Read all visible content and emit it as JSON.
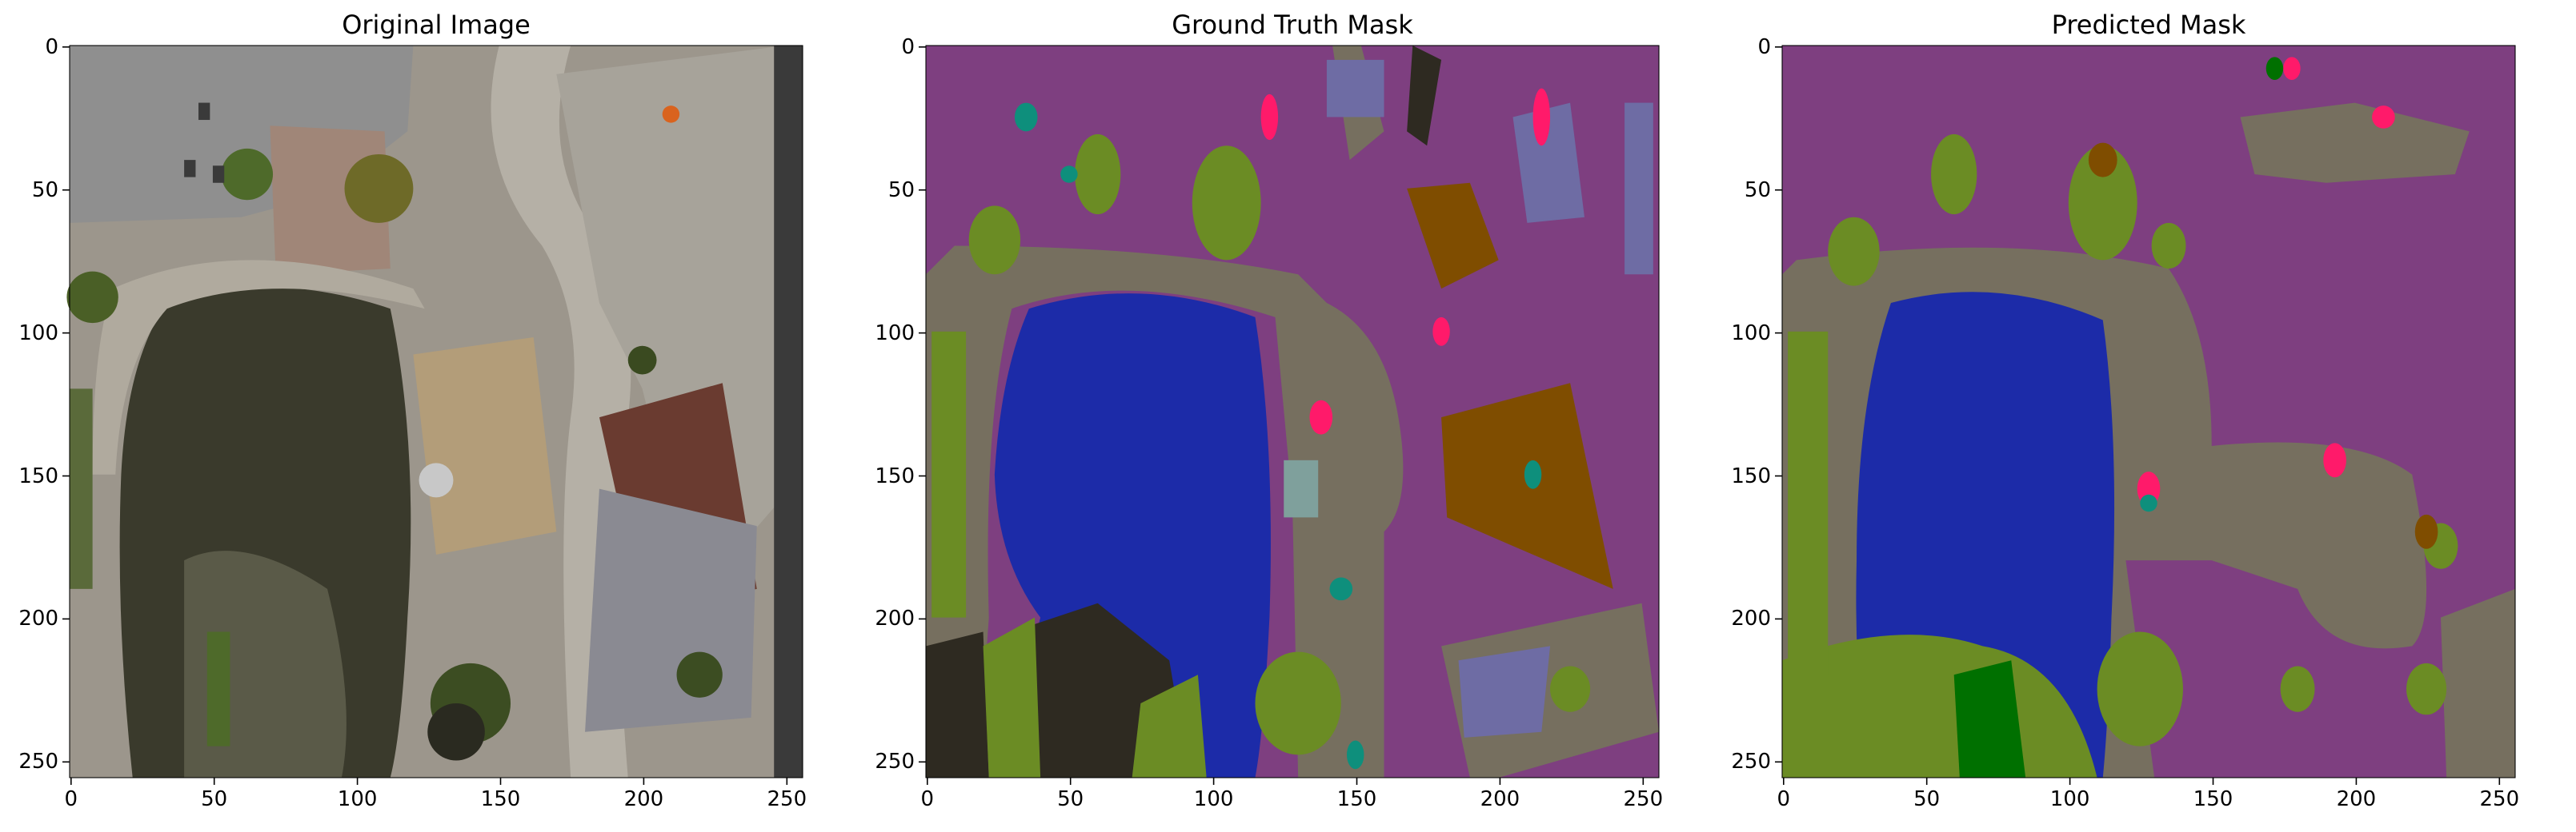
{
  "figure": {
    "panels": [
      {
        "id": "original",
        "title": "Original Image",
        "x_ticks": [
          "0",
          "50",
          "100",
          "150",
          "200",
          "250"
        ],
        "y_ticks": [
          "0",
          "50",
          "100",
          "150",
          "200",
          "250"
        ],
        "content": "aerial-photo"
      },
      {
        "id": "ground-truth",
        "title": "Ground Truth Mask",
        "x_ticks": [
          "0",
          "50",
          "100",
          "150",
          "200",
          "250"
        ],
        "y_ticks": [
          "0",
          "50",
          "100",
          "150",
          "200",
          "250"
        ],
        "content": "segmentation-mask"
      },
      {
        "id": "predicted",
        "title": "Predicted Mask",
        "x_ticks": [
          "0",
          "50",
          "100",
          "150",
          "200",
          "250"
        ],
        "y_ticks": [
          "0",
          "50",
          "100",
          "150",
          "200",
          "250"
        ],
        "content": "segmentation-mask"
      }
    ],
    "axis_range": [
      0,
      255
    ],
    "tick_values": [
      0,
      50,
      100,
      150,
      200,
      250
    ],
    "colors": {
      "background_class": "#7e3f80",
      "water": "#1c2ba8",
      "vegetation": "#6b8c24",
      "ground": "#766f5f",
      "dirt": "#7f4d00",
      "dark": "#2e2a21",
      "roof": "#6e6ca4",
      "person": "#ff1a6a",
      "obstacle": "#0e8f7c",
      "tree": "#007000",
      "pole": "#7fa09c",
      "photo_water": "#3a3a2c",
      "photo_stone": "#9a948a",
      "photo_paving": "#8a8a8a",
      "photo_roof": "#a59a8c",
      "photo_mulch": "#6a3b30",
      "photo_green": "#566c2a",
      "photo_deck": "#b39d79",
      "photo_dark": "#3a3a3a"
    }
  }
}
